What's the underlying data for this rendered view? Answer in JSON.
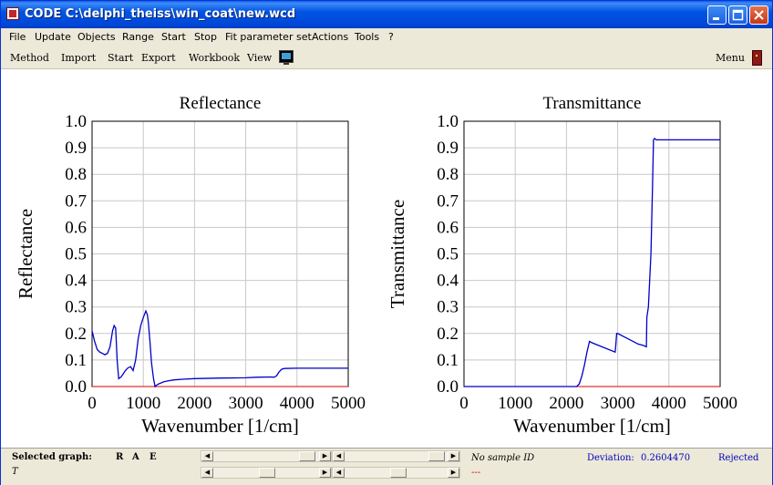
{
  "window": {
    "title": "CODE C:\\delphi_theiss\\win_coat\\new.wcd"
  },
  "menu": [
    "File",
    "Update",
    "Objects",
    "Range",
    "Start",
    "Stop",
    "Fit parameter set",
    "Actions",
    "Tools",
    "?"
  ],
  "toolbar": {
    "items": [
      "Method",
      "Import",
      "Start",
      "Export",
      "Workbook",
      "View"
    ],
    "right": "Menu"
  },
  "status": {
    "selected_graph_label": "Selected graph:",
    "graph_buttons": [
      "R",
      "A",
      "E"
    ],
    "current_graph": "T",
    "sample_id": "No sample ID",
    "deviation_label": "Deviation:",
    "deviation_value": "0.2604470",
    "result": "Rejected",
    "dashes": "---"
  },
  "chart_data": [
    {
      "type": "line",
      "title": "Reflectance",
      "xlabel": "Wavenumber [1/cm]",
      "ylabel": "Reflectance",
      "xlim": [
        0,
        5000
      ],
      "ylim": [
        0,
        1.0
      ],
      "xticks": [
        "0",
        "1000",
        "2000",
        "3000",
        "4000",
        "5000"
      ],
      "yticks": [
        "0.0",
        "0.1",
        "0.2",
        "0.3",
        "0.4",
        "0.5",
        "0.6",
        "0.7",
        "0.8",
        "0.9",
        "1.0"
      ],
      "grid": true,
      "series": [
        {
          "color": "#0000C8",
          "x": [
            0,
            50,
            100,
            150,
            200,
            250,
            300,
            350,
            400,
            430,
            460,
            490,
            520,
            560,
            600,
            650,
            700,
            750,
            800,
            850,
            900,
            950,
            1000,
            1050,
            1080,
            1100,
            1130,
            1160,
            1200,
            1230,
            1260,
            1300,
            1400,
            1500,
            1600,
            1800,
            2000,
            2500,
            3000,
            3200,
            3500,
            3550,
            3600,
            3650,
            3700,
            3750,
            4000,
            4500,
            5000
          ],
          "y": [
            0.21,
            0.17,
            0.14,
            0.13,
            0.125,
            0.12,
            0.125,
            0.15,
            0.21,
            0.23,
            0.22,
            0.1,
            0.03,
            0.035,
            0.045,
            0.06,
            0.07,
            0.075,
            0.06,
            0.1,
            0.18,
            0.23,
            0.26,
            0.285,
            0.27,
            0.24,
            0.17,
            0.09,
            0.03,
            0.0,
            0.005,
            0.01,
            0.018,
            0.022,
            0.025,
            0.028,
            0.03,
            0.032,
            0.033,
            0.035,
            0.036,
            0.035,
            0.04,
            0.055,
            0.065,
            0.068,
            0.069,
            0.069,
            0.069
          ]
        }
      ]
    },
    {
      "type": "line",
      "title": "Transmittance",
      "xlabel": "Wavenumber [1/cm]",
      "ylabel": "Transmittance",
      "xlim": [
        0,
        5000
      ],
      "ylim": [
        0,
        1.0
      ],
      "xticks": [
        "0",
        "1000",
        "2000",
        "3000",
        "4000",
        "5000"
      ],
      "yticks": [
        "0.0",
        "0.1",
        "0.2",
        "0.3",
        "0.4",
        "0.5",
        "0.6",
        "0.7",
        "0.8",
        "0.9",
        "1.0"
      ],
      "grid": true,
      "series": [
        {
          "color": "#0000C8",
          "x": [
            0,
            1000,
            2000,
            2200,
            2250,
            2300,
            2350,
            2400,
            2450,
            2500,
            2950,
            2960,
            2980,
            3000,
            3200,
            3400,
            3500,
            3560,
            3570,
            3600,
            3650,
            3680,
            3700,
            3720,
            3750,
            3800,
            4000,
            4500,
            5000
          ],
          "y": [
            0,
            0,
            0,
            0,
            0.01,
            0.04,
            0.08,
            0.13,
            0.17,
            0.165,
            0.13,
            0.15,
            0.2,
            0.2,
            0.18,
            0.16,
            0.155,
            0.15,
            0.26,
            0.3,
            0.5,
            0.75,
            0.93,
            0.935,
            0.93,
            0.93,
            0.93,
            0.93,
            0.93
          ]
        }
      ]
    }
  ]
}
